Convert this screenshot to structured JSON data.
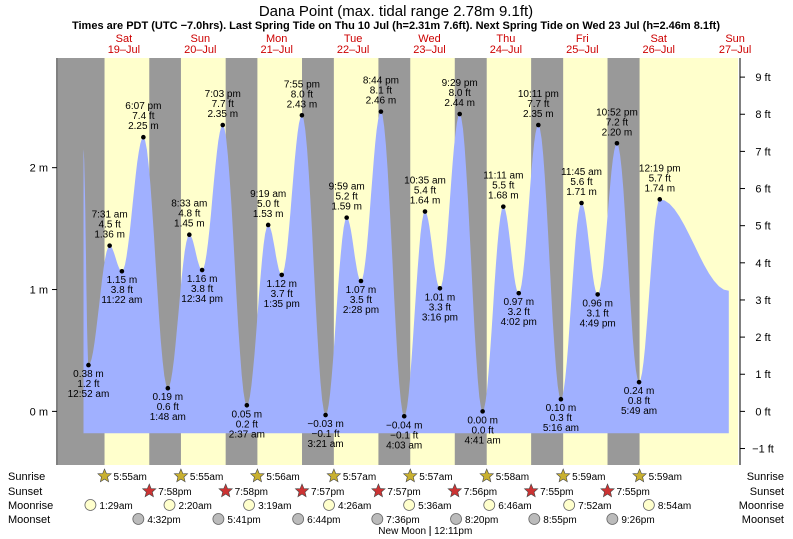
{
  "chart_data": {
    "type": "area",
    "title": "Dana Point (max. tidal range 2.78m 9.1ft)",
    "subtitle": "Times are PDT (UTC −7.0hrs). Last Spring Tide on Thu 10 Jul (h=2.31m 7.6ft). Next Spring Tide on Wed 23 Jul (h=2.46m 8.1ft)",
    "days": [
      {
        "dow": "Sat",
        "date": "19–Jul"
      },
      {
        "dow": "Sun",
        "date": "20–Jul"
      },
      {
        "dow": "Mon",
        "date": "21–Jul"
      },
      {
        "dow": "Tue",
        "date": "22–Jul"
      },
      {
        "dow": "Wed",
        "date": "23–Jul"
      },
      {
        "dow": "Thu",
        "date": "24–Jul"
      },
      {
        "dow": "Fri",
        "date": "25–Jul"
      },
      {
        "dow": "Sat",
        "date": "26–Jul"
      },
      {
        "dow": "Sun",
        "date": "27–Jul"
      }
    ],
    "left_axis": {
      "unit": "m",
      "ticks": [
        {
          "v": 0,
          "label": "0 m"
        },
        {
          "v": 1,
          "label": "1 m"
        },
        {
          "v": 2,
          "label": "2 m"
        }
      ]
    },
    "right_axis": {
      "unit": "ft",
      "ticks": [
        {
          "v": -1,
          "label": "−1 ft"
        },
        {
          "v": 0,
          "label": "0 ft"
        },
        {
          "v": 1,
          "label": "1 ft"
        },
        {
          "v": 2,
          "label": "2 ft"
        },
        {
          "v": 3,
          "label": "3 ft"
        },
        {
          "v": 4,
          "label": "4 ft"
        },
        {
          "v": 5,
          "label": "5 ft"
        },
        {
          "v": 6,
          "label": "6 ft"
        },
        {
          "v": 7,
          "label": "7 ft"
        },
        {
          "v": 8,
          "label": "8 ft"
        },
        {
          "v": 9,
          "label": "9 ft"
        }
      ]
    },
    "ylim_m": [
      -0.44,
      2.9
    ],
    "xlim_hours": [
      -8.7,
      204.9
    ],
    "start": {
      "h": -0.7,
      "m": 2.15
    },
    "end": {
      "h": 202.0,
      "m": 0.99
    },
    "extremes": [
      {
        "h": 0.87,
        "m": 0.38,
        "time": "12:52 am",
        "m_label": "0.38 m",
        "ft_label": "1.2 ft",
        "type": "low"
      },
      {
        "h": 7.52,
        "m": 1.36,
        "time": "7:31 am",
        "m_label": "1.36 m",
        "ft_label": "4.5 ft",
        "type": "high"
      },
      {
        "h": 11.37,
        "m": 1.15,
        "time": "11:22 am",
        "m_label": "1.15 m",
        "ft_label": "3.8 ft",
        "type": "low"
      },
      {
        "h": 18.12,
        "m": 2.25,
        "time": "6:07 pm",
        "m_label": "2.25 m",
        "ft_label": "7.4 ft",
        "type": "high"
      },
      {
        "h": 25.8,
        "m": 0.19,
        "time": "1:48 am",
        "m_label": "0.19 m",
        "ft_label": "0.6 ft",
        "type": "low"
      },
      {
        "h": 32.55,
        "m": 1.45,
        "time": "8:33 am",
        "m_label": "1.45 m",
        "ft_label": "4.8 ft",
        "type": "high"
      },
      {
        "h": 36.57,
        "m": 1.16,
        "time": "12:34 pm",
        "m_label": "1.16 m",
        "ft_label": "3.8 ft",
        "type": "low"
      },
      {
        "h": 43.05,
        "m": 2.35,
        "time": "7:03 pm",
        "m_label": "2.35 m",
        "ft_label": "7.7 ft",
        "type": "high"
      },
      {
        "h": 50.62,
        "m": 0.05,
        "time": "2:37 am",
        "m_label": "0.05 m",
        "ft_label": "0.2 ft",
        "type": "low"
      },
      {
        "h": 57.32,
        "m": 1.53,
        "time": "9:19 am",
        "m_label": "1.53 m",
        "ft_label": "5.0 ft",
        "type": "high"
      },
      {
        "h": 61.58,
        "m": 1.12,
        "time": "1:35 pm",
        "m_label": "1.12 m",
        "ft_label": "3.7 ft",
        "type": "low"
      },
      {
        "h": 67.92,
        "m": 2.43,
        "time": "7:55 pm",
        "m_label": "2.43 m",
        "ft_label": "8.0 ft",
        "type": "high"
      },
      {
        "h": 75.35,
        "m": -0.03,
        "time": "3:21 am",
        "m_label": "−0.03 m",
        "ft_label": "−0.1 ft",
        "type": "low"
      },
      {
        "h": 81.98,
        "m": 1.59,
        "time": "9:59 am",
        "m_label": "1.59 m",
        "ft_label": "5.2 ft",
        "type": "high"
      },
      {
        "h": 86.47,
        "m": 1.07,
        "time": "2:28 pm",
        "m_label": "1.07 m",
        "ft_label": "3.5 ft",
        "type": "low"
      },
      {
        "h": 92.73,
        "m": 2.46,
        "time": "8:44 pm",
        "m_label": "2.46 m",
        "ft_label": "8.1 ft",
        "type": "high"
      },
      {
        "h": 100.05,
        "m": -0.04,
        "time": "4:03 am",
        "m_label": "−0.04 m",
        "ft_label": "−0.1 ft",
        "type": "low"
      },
      {
        "h": 106.58,
        "m": 1.64,
        "time": "10:35 am",
        "m_label": "1.64 m",
        "ft_label": "5.4 ft",
        "type": "high"
      },
      {
        "h": 111.27,
        "m": 1.01,
        "time": "3:16 pm",
        "m_label": "1.01 m",
        "ft_label": "3.3 ft",
        "type": "low"
      },
      {
        "h": 117.48,
        "m": 2.44,
        "time": "9:29 pm",
        "m_label": "2.44 m",
        "ft_label": "8.0 ft",
        "type": "high"
      },
      {
        "h": 124.68,
        "m": 0.0,
        "time": "4:41 am",
        "m_label": "0.00 m",
        "ft_label": "0.0 ft",
        "type": "low"
      },
      {
        "h": 131.18,
        "m": 1.68,
        "time": "11:11 am",
        "m_label": "1.68 m",
        "ft_label": "5.5 ft",
        "type": "high"
      },
      {
        "h": 136.03,
        "m": 0.97,
        "time": "4:02 pm",
        "m_label": "0.97 m",
        "ft_label": "3.2 ft",
        "type": "low"
      },
      {
        "h": 142.18,
        "m": 2.35,
        "time": "10:11 pm",
        "m_label": "2.35 m",
        "ft_label": "7.7 ft",
        "type": "high"
      },
      {
        "h": 149.27,
        "m": 0.1,
        "time": "5:16 am",
        "m_label": "0.10 m",
        "ft_label": "0.3 ft",
        "type": "low"
      },
      {
        "h": 155.75,
        "m": 1.71,
        "time": "11:45 am",
        "m_label": "1.71 m",
        "ft_label": "5.6 ft",
        "type": "high"
      },
      {
        "h": 160.82,
        "m": 0.96,
        "time": "4:49 pm",
        "m_label": "0.96 m",
        "ft_label": "3.1 ft",
        "type": "low"
      },
      {
        "h": 166.87,
        "m": 2.2,
        "time": "10:52 pm",
        "m_label": "2.20 m",
        "ft_label": "7.2 ft",
        "type": "high"
      },
      {
        "h": 173.82,
        "m": 0.24,
        "time": "5:49 am",
        "m_label": "0.24 m",
        "ft_label": "0.8 ft",
        "type": "low"
      },
      {
        "h": 180.32,
        "m": 1.74,
        "time": "12:19 pm",
        "m_label": "1.74 m",
        "ft_label": "5.7 ft",
        "type": "high"
      }
    ],
    "sunrise": [
      "5:55am",
      "5:55am",
      "5:56am",
      "5:57am",
      "5:57am",
      "5:58am",
      "5:59am",
      "5:59am"
    ],
    "sunset": [
      "7:58pm",
      "7:58pm",
      "7:57pm",
      "7:57pm",
      "7:56pm",
      "7:55pm",
      "7:55pm"
    ],
    "moonrise": [
      "1:29am",
      "2:20am",
      "3:19am",
      "4:26am",
      "5:36am",
      "6:46am",
      "7:52am",
      "8:54am"
    ],
    "moonset": [
      "4:32pm",
      "5:41pm",
      "6:44pm",
      "7:36pm",
      "8:20pm",
      "8:55pm",
      "9:26pm"
    ],
    "moon_phase": {
      "label": "New Moon",
      "time": "12:11pm"
    },
    "row_labels": {
      "sunrise": "Sunrise",
      "sunset": "Sunset",
      "moonrise": "Moonrise",
      "moonset": "Moonset"
    },
    "colors": {
      "night": "#999999",
      "day": "#ffffcc",
      "water": "#a0b0ff",
      "frame": "#000000",
      "day_label": "#cc0000",
      "sun_star": "#c8b030",
      "sunset_star": "#cc3333",
      "moonrise_fill": "#ffffcc",
      "moonset_fill": "#bbbbbb"
    }
  }
}
